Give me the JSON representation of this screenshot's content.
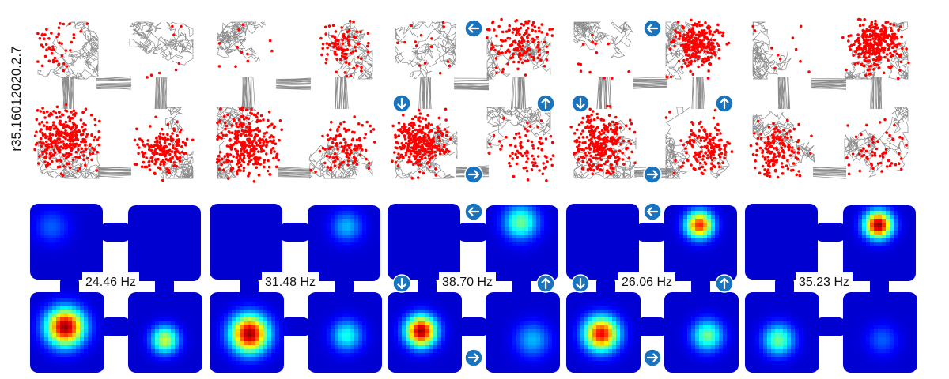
{
  "figure": {
    "row_label": "r35.16012020.2.7",
    "panels": [
      {
        "rate_label": "24.46 Hz",
        "arrows": false
      },
      {
        "rate_label": "31.48 Hz",
        "arrows": false
      },
      {
        "rate_label": "38.70 Hz",
        "arrows": true
      },
      {
        "rate_label": "26.06 Hz",
        "arrows": true
      },
      {
        "rate_label": "35.23 Hz",
        "arrows": false
      }
    ],
    "arrow_icons": {
      "top": "arrow-left-icon",
      "left": "arrow-down-icon",
      "right": "arrow-up-icon",
      "bottom": "arrow-right-icon"
    },
    "colors": {
      "trajectory": "#8c8c8c",
      "spike": "#ff0000",
      "arrow_badge": "#1a73bd",
      "heatmap_background": "#00008b",
      "heatmap_peak": "#8b0000"
    }
  }
}
